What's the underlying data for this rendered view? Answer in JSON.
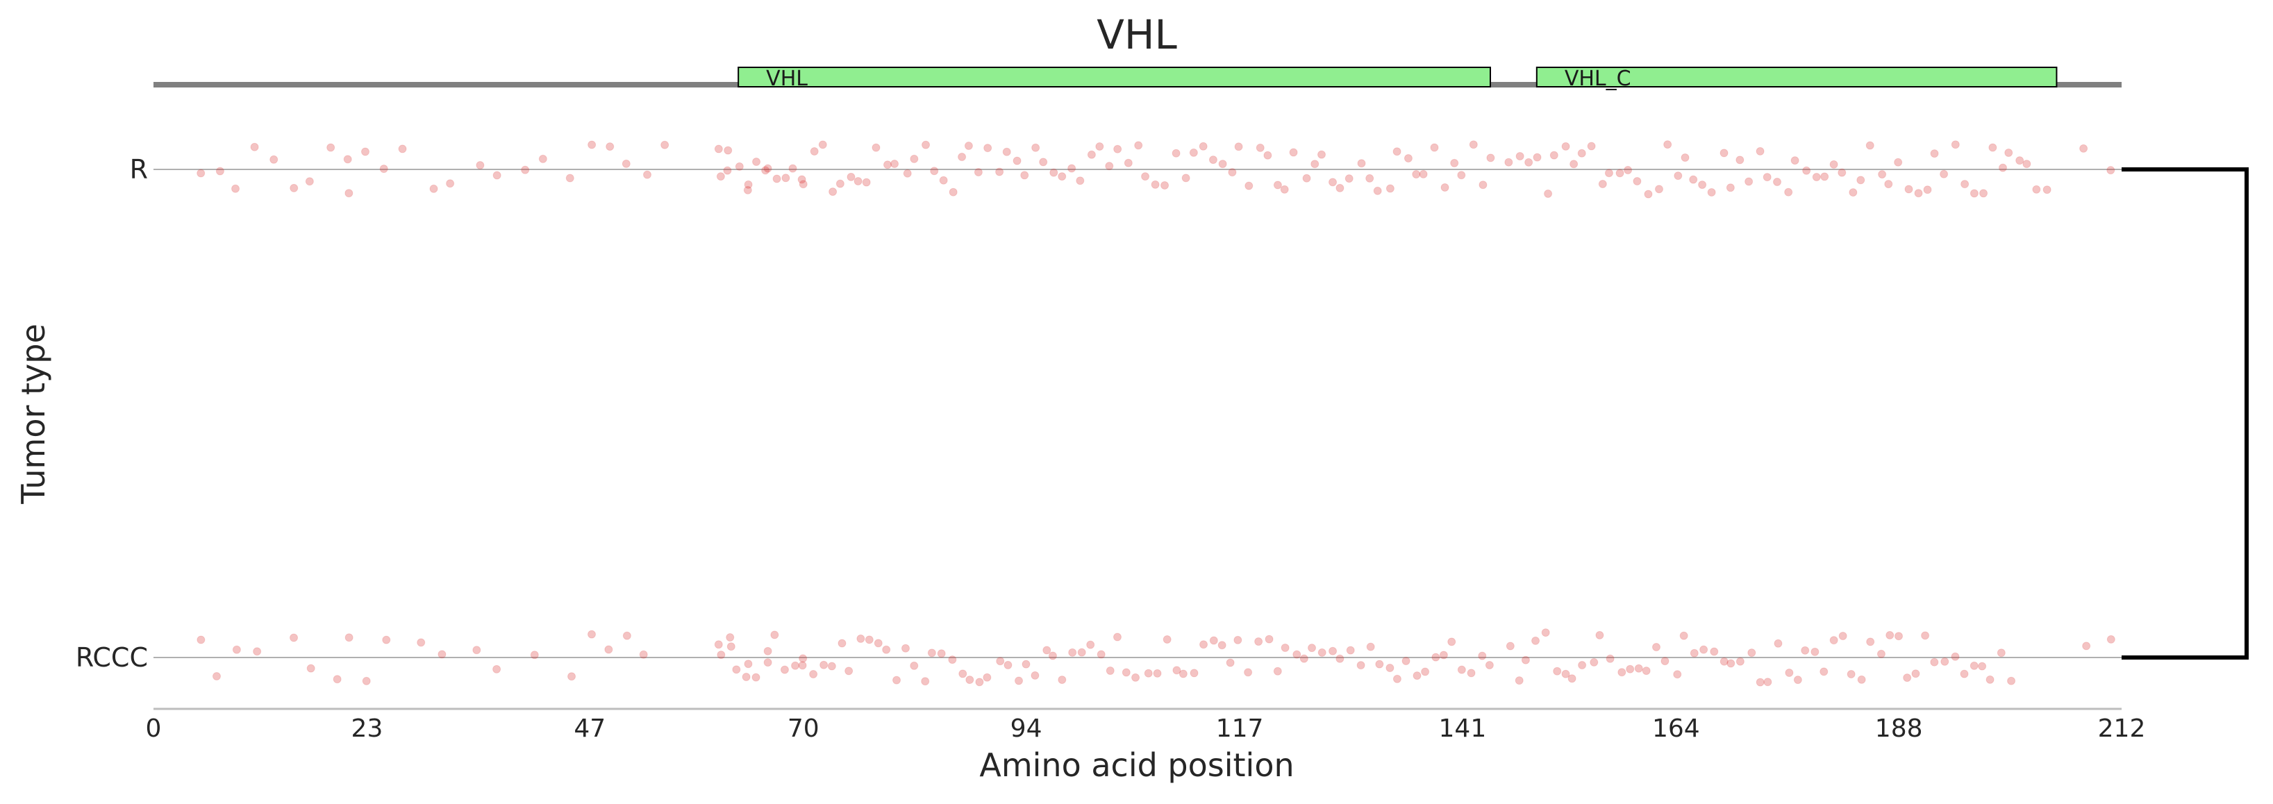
{
  "chart_data": {
    "type": "scatter",
    "title": "VHL",
    "xlabel": "Amino acid position",
    "ylabel": "Tumor type",
    "xlim": [
      0,
      212
    ],
    "xticks": [
      "0",
      "23",
      "47",
      "70",
      "94",
      "117",
      "141",
      "164",
      "188",
      "212"
    ],
    "categories": [
      "R",
      "RCCC"
    ],
    "domains": [
      {
        "name": "VHL",
        "start": 63,
        "end": 144
      },
      {
        "name": "VHL_C",
        "start": 149,
        "end": 205
      }
    ],
    "point_color": "#d62728",
    "domain_color": "#90ee90",
    "series": [
      {
        "name": "R",
        "x": [
          5,
          7,
          9,
          11,
          13,
          15,
          17,
          19,
          21,
          21,
          23,
          25,
          27,
          30,
          32,
          35,
          37,
          40,
          42,
          45,
          47,
          49,
          51,
          53,
          55,
          61,
          61,
          62,
          62,
          63,
          64,
          64,
          65,
          66,
          66,
          67,
          68,
          69,
          70,
          70,
          71,
          72,
          73,
          74,
          75,
          76,
          77,
          78,
          79,
          80,
          81,
          82,
          83,
          84,
          85,
          86,
          87,
          88,
          89,
          90,
          91,
          92,
          93,
          94,
          95,
          96,
          97,
          98,
          99,
          100,
          101,
          102,
          103,
          104,
          105,
          106,
          107,
          108,
          109,
          110,
          111,
          112,
          113,
          114,
          115,
          116,
          117,
          118,
          119,
          120,
          121,
          122,
          123,
          124,
          125,
          126,
          127,
          128,
          129,
          130,
          131,
          132,
          133,
          134,
          135,
          136,
          137,
          138,
          139,
          140,
          141,
          142,
          143,
          144,
          146,
          147,
          148,
          149,
          150,
          151,
          152,
          153,
          154,
          155,
          156,
          157,
          158,
          159,
          160,
          161,
          162,
          163,
          164,
          165,
          166,
          167,
          168,
          169,
          170,
          171,
          172,
          173,
          174,
          175,
          176,
          177,
          178,
          179,
          180,
          181,
          182,
          183,
          184,
          185,
          186,
          187,
          188,
          189,
          190,
          191,
          192,
          193,
          194,
          195,
          196,
          197,
          198,
          199,
          200,
          201,
          202,
          203,
          204,
          208,
          211
        ]
      },
      {
        "name": "RCCC",
        "x": [
          5,
          7,
          9,
          11,
          15,
          17,
          20,
          21,
          23,
          25,
          29,
          31,
          35,
          37,
          41,
          45,
          47,
          49,
          51,
          53,
          61,
          61,
          62,
          62,
          63,
          64,
          64,
          65,
          66,
          66,
          67,
          68,
          69,
          70,
          70,
          71,
          72,
          73,
          74,
          75,
          76,
          77,
          78,
          79,
          80,
          81,
          82,
          83,
          84,
          85,
          86,
          87,
          88,
          89,
          90,
          91,
          92,
          93,
          94,
          95,
          96,
          97,
          98,
          99,
          100,
          101,
          102,
          103,
          104,
          105,
          106,
          107,
          108,
          109,
          110,
          111,
          112,
          113,
          114,
          115,
          116,
          117,
          118,
          119,
          120,
          121,
          122,
          123,
          124,
          125,
          126,
          127,
          128,
          129,
          130,
          131,
          132,
          133,
          134,
          135,
          136,
          137,
          138,
          139,
          140,
          141,
          142,
          143,
          144,
          146,
          147,
          148,
          149,
          150,
          151,
          152,
          153,
          154,
          155,
          156,
          157,
          158,
          159,
          160,
          161,
          162,
          163,
          164,
          165,
          166,
          167,
          168,
          169,
          170,
          171,
          172,
          173,
          174,
          175,
          176,
          177,
          178,
          179,
          180,
          181,
          182,
          183,
          184,
          185,
          186,
          187,
          188,
          189,
          190,
          191,
          192,
          193,
          194,
          195,
          196,
          197,
          198,
          199,
          200,
          208,
          211
        ]
      }
    ]
  }
}
